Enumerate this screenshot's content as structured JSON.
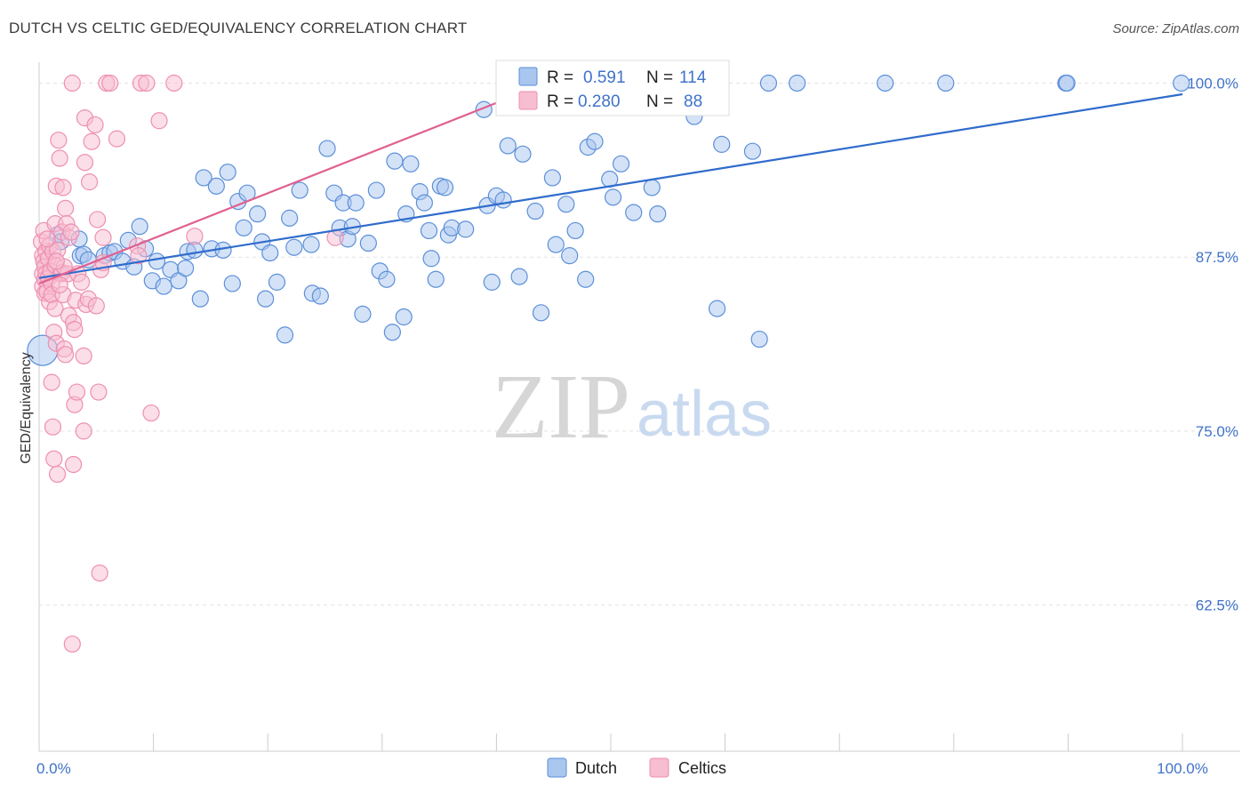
{
  "header": {
    "title": "DUTCH VS CELTIC GED/EQUIVALENCY CORRELATION CHART",
    "source": "Source: ZipAtlas.com"
  },
  "watermark": {
    "zip": "ZIP",
    "atlas": "atlas"
  },
  "legend": {
    "r_label": "R =",
    "n_label": "N =",
    "entries": [
      {
        "r": "0.591",
        "n": "114",
        "color": "#7aa7e6"
      },
      {
        "r": "0.280",
        "n": "88",
        "color": "#f4a0bd"
      }
    ]
  },
  "bottom_legend": [
    "Dutch",
    "Celtics"
  ],
  "chart_data": {
    "type": "scatter",
    "ylabel": "GED/Equivalency",
    "xlim": [
      0,
      100
    ],
    "ylim": [
      52,
      101.5
    ],
    "y_ticks": [
      {
        "value": 100,
        "label": "100.0%"
      },
      {
        "value": 87.5,
        "label": "87.5%"
      },
      {
        "value": 75,
        "label": "75.0%"
      },
      {
        "value": 62.5,
        "label": "62.5%"
      }
    ],
    "x_tick_labels": [
      {
        "value": 0,
        "label": "0.0%"
      },
      {
        "value": 100,
        "label": "100.0%"
      }
    ],
    "grid": true,
    "series": [
      {
        "name": "Dutch",
        "color": "#5b8fd9",
        "fill": "#a9c6ef",
        "trend": {
          "x0": 0,
          "y0": 86.0,
          "x1": 100,
          "y1": 99.2,
          "color": "#2f6ccc"
        },
        "points": [
          [
            0.3,
            80.8
          ],
          [
            1.6,
            89.1
          ],
          [
            1.9,
            88.6
          ],
          [
            3.5,
            88.8
          ],
          [
            3.6,
            87.6
          ],
          [
            3.9,
            87.7
          ],
          [
            4.3,
            87.3
          ],
          [
            5.7,
            87.6
          ],
          [
            6.2,
            87.8
          ],
          [
            6.6,
            87.9
          ],
          [
            7.3,
            87.2
          ],
          [
            7.8,
            88.7
          ],
          [
            8.3,
            86.8
          ],
          [
            8.8,
            89.7
          ],
          [
            9.3,
            88.1
          ],
          [
            9.9,
            85.8
          ],
          [
            10.3,
            87.2
          ],
          [
            10.9,
            85.4
          ],
          [
            11.5,
            86.6
          ],
          [
            12.2,
            85.8
          ],
          [
            12.8,
            86.7
          ],
          [
            13.0,
            87.9
          ],
          [
            13.6,
            88.0
          ],
          [
            14.1,
            84.5
          ],
          [
            14.4,
            93.2
          ],
          [
            15.1,
            88.1
          ],
          [
            15.5,
            92.6
          ],
          [
            16.1,
            88.0
          ],
          [
            16.5,
            93.6
          ],
          [
            16.9,
            85.6
          ],
          [
            17.4,
            91.5
          ],
          [
            17.9,
            89.6
          ],
          [
            18.2,
            92.1
          ],
          [
            19.1,
            90.6
          ],
          [
            19.5,
            88.6
          ],
          [
            19.8,
            84.5
          ],
          [
            20.2,
            87.8
          ],
          [
            20.8,
            85.7
          ],
          [
            21.5,
            81.9
          ],
          [
            21.9,
            90.3
          ],
          [
            22.3,
            88.2
          ],
          [
            22.8,
            92.3
          ],
          [
            23.8,
            88.4
          ],
          [
            23.9,
            84.9
          ],
          [
            24.6,
            84.7
          ],
          [
            25.2,
            95.3
          ],
          [
            25.8,
            92.1
          ],
          [
            26.3,
            89.6
          ],
          [
            26.6,
            91.4
          ],
          [
            27.0,
            88.8
          ],
          [
            27.4,
            89.7
          ],
          [
            27.7,
            91.4
          ],
          [
            28.3,
            83.4
          ],
          [
            28.8,
            88.5
          ],
          [
            29.5,
            92.3
          ],
          [
            29.8,
            86.5
          ],
          [
            30.4,
            85.9
          ],
          [
            30.9,
            82.1
          ],
          [
            31.1,
            94.4
          ],
          [
            31.9,
            83.2
          ],
          [
            32.1,
            90.6
          ],
          [
            32.5,
            94.2
          ],
          [
            33.3,
            92.2
          ],
          [
            33.7,
            91.4
          ],
          [
            34.1,
            89.4
          ],
          [
            34.3,
            87.4
          ],
          [
            34.7,
            85.9
          ],
          [
            35.1,
            92.6
          ],
          [
            35.5,
            92.5
          ],
          [
            35.8,
            89.1
          ],
          [
            36.1,
            89.6
          ],
          [
            37.3,
            89.5
          ],
          [
            38.9,
            98.1
          ],
          [
            39.2,
            91.2
          ],
          [
            39.6,
            85.7
          ],
          [
            40.0,
            91.9
          ],
          [
            40.6,
            91.6
          ],
          [
            41.0,
            95.5
          ],
          [
            42.0,
            86.1
          ],
          [
            42.3,
            94.9
          ],
          [
            43.4,
            90.8
          ],
          [
            43.9,
            83.5
          ],
          [
            44.9,
            93.2
          ],
          [
            45.2,
            88.4
          ],
          [
            46.1,
            91.3
          ],
          [
            46.4,
            87.6
          ],
          [
            46.9,
            89.4
          ],
          [
            47.8,
            85.9
          ],
          [
            48.0,
            95.4
          ],
          [
            48.6,
            95.8
          ],
          [
            49.9,
            93.1
          ],
          [
            50.2,
            91.8
          ],
          [
            50.9,
            94.2
          ],
          [
            51.9,
            99.0
          ],
          [
            52.0,
            90.7
          ],
          [
            53.6,
            92.5
          ],
          [
            54.1,
            90.6
          ],
          [
            57.3,
            97.6
          ],
          [
            59.3,
            83.8
          ],
          [
            59.7,
            95.6
          ],
          [
            62.4,
            95.1
          ],
          [
            63.0,
            81.6
          ],
          [
            63.8,
            100.0
          ],
          [
            66.3,
            100.0
          ],
          [
            74.0,
            100.0
          ],
          [
            79.3,
            100.0
          ],
          [
            89.8,
            100.0
          ],
          [
            89.9,
            100.0
          ],
          [
            99.9,
            100.0
          ]
        ]
      },
      {
        "name": "Celtics",
        "color": "#ee8fb0",
        "fill": "#f7bdd1",
        "trend": {
          "x0": 0,
          "y0": 85.6,
          "x1": 45,
          "y1": 100.2,
          "color": "#e0608f"
        },
        "points": [
          [
            0.2,
            88.6
          ],
          [
            0.3,
            87.6
          ],
          [
            0.3,
            86.3
          ],
          [
            0.3,
            85.4
          ],
          [
            0.4,
            89.4
          ],
          [
            0.4,
            87.2
          ],
          [
            0.5,
            86.8
          ],
          [
            0.5,
            85.9
          ],
          [
            0.5,
            84.9
          ],
          [
            0.6,
            87.9
          ],
          [
            0.6,
            86.3
          ],
          [
            0.7,
            85.0
          ],
          [
            0.8,
            87.4
          ],
          [
            0.8,
            86.0
          ],
          [
            0.9,
            88.3
          ],
          [
            0.9,
            84.3
          ],
          [
            1.0,
            86.5
          ],
          [
            1.1,
            85.6
          ],
          [
            1.1,
            84.8
          ],
          [
            1.1,
            78.5
          ],
          [
            1.2,
            87.9
          ],
          [
            1.2,
            75.3
          ],
          [
            1.3,
            82.1
          ],
          [
            1.3,
            73.0
          ],
          [
            1.4,
            89.9
          ],
          [
            1.4,
            86.9
          ],
          [
            1.4,
            83.8
          ],
          [
            1.5,
            92.6
          ],
          [
            1.5,
            81.3
          ],
          [
            1.6,
            88.0
          ],
          [
            1.6,
            71.9
          ],
          [
            1.7,
            95.9
          ],
          [
            1.8,
            94.6
          ],
          [
            1.9,
            86.3
          ],
          [
            2.0,
            89.3
          ],
          [
            2.0,
            86.4
          ],
          [
            2.1,
            92.5
          ],
          [
            2.1,
            84.8
          ],
          [
            2.2,
            80.9
          ],
          [
            2.3,
            91.0
          ],
          [
            2.3,
            80.5
          ],
          [
            2.4,
            89.9
          ],
          [
            2.5,
            86.3
          ],
          [
            2.6,
            83.3
          ],
          [
            2.6,
            88.9
          ],
          [
            2.8,
            89.3
          ],
          [
            2.9,
            100.0
          ],
          [
            3.0,
            72.6
          ],
          [
            3.0,
            82.8
          ],
          [
            3.1,
            76.9
          ],
          [
            3.1,
            82.3
          ],
          [
            3.2,
            84.4
          ],
          [
            3.3,
            77.8
          ],
          [
            3.4,
            86.3
          ],
          [
            3.7,
            85.7
          ],
          [
            3.9,
            75.0
          ],
          [
            3.9,
            80.4
          ],
          [
            4.0,
            97.5
          ],
          [
            4.0,
            94.3
          ],
          [
            4.1,
            84.1
          ],
          [
            4.3,
            84.5
          ],
          [
            4.4,
            92.9
          ],
          [
            4.6,
            95.8
          ],
          [
            4.9,
            97.0
          ],
          [
            5.0,
            84.0
          ],
          [
            5.1,
            90.2
          ],
          [
            5.2,
            77.8
          ],
          [
            5.3,
            64.8
          ],
          [
            5.4,
            86.6
          ],
          [
            5.6,
            88.9
          ],
          [
            5.6,
            87.1
          ],
          [
            5.9,
            100.0
          ],
          [
            6.2,
            100.0
          ],
          [
            6.8,
            96.0
          ],
          [
            8.6,
            88.3
          ],
          [
            8.7,
            87.6
          ],
          [
            8.9,
            100.0
          ],
          [
            9.4,
            100.0
          ],
          [
            9.8,
            76.3
          ],
          [
            10.5,
            97.3
          ],
          [
            11.8,
            100.0
          ],
          [
            13.6,
            89.0
          ],
          [
            2.9,
            59.7
          ],
          [
            1.8,
            85.5
          ],
          [
            2.2,
            86.8
          ],
          [
            0.7,
            88.8
          ],
          [
            1.5,
            87.2
          ],
          [
            25.9,
            88.9
          ]
        ]
      }
    ]
  }
}
